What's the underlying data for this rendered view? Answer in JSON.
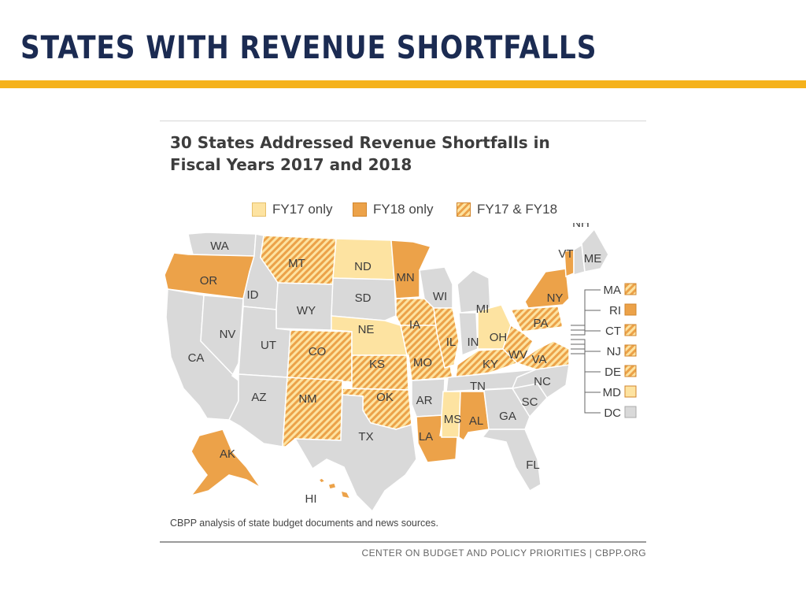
{
  "slide": {
    "title": "STATES WITH REVENUE SHORTFALLS",
    "accent_color": "#f5b21c",
    "title_color": "#1b2b52"
  },
  "figure": {
    "title_line1": "30 States Addressed Revenue Shortfalls in",
    "title_line2": "Fiscal Years 2017 and 2018",
    "legend": [
      {
        "label": "FY17 only",
        "category": "fy17"
      },
      {
        "label": "FY18 only",
        "category": "fy18"
      },
      {
        "label": "FY17 & FY18",
        "category": "both"
      }
    ],
    "source_note": "CBPP analysis of state budget documents and news sources.",
    "credit": "CENTER ON BUDGET AND POLICY PRIORITIES | CBPP.ORG"
  },
  "colors": {
    "fy17": "#fde3a1",
    "fy18": "#eca249",
    "both_light": "#fde3a1",
    "both_dark": "#eca249",
    "none": "#d9d9d9",
    "border": "#ffffff"
  },
  "states": {
    "WA": "none",
    "OR": "fy18",
    "CA": "none",
    "NV": "none",
    "ID": "none",
    "MT": "both",
    "WY": "none",
    "UT": "none",
    "AZ": "none",
    "CO": "both",
    "NM": "both",
    "ND": "fy17",
    "SD": "none",
    "NE": "fy17",
    "KS": "both",
    "OK": "both",
    "TX": "none",
    "MN": "fy18",
    "IA": "both",
    "MO": "both",
    "AR": "none",
    "LA": "fy18",
    "WI": "none",
    "IL": "both",
    "MI": "none",
    "IN": "none",
    "OH": "fy17",
    "KY": "both",
    "TN": "none",
    "MS": "fy17",
    "AL": "fy18",
    "GA": "none",
    "FL": "none",
    "SC": "none",
    "NC": "none",
    "VA": "both",
    "WV": "both",
    "PA": "both",
    "NY": "fy18",
    "VT": "fy18",
    "NH": "none",
    "ME": "none",
    "AK": "fy18",
    "HI": "fy18"
  },
  "map_labels": [
    "WA",
    "OR",
    "CA",
    "NV",
    "ID",
    "MT",
    "WY",
    "UT",
    "AZ",
    "CO",
    "NM",
    "ND",
    "SD",
    "NE",
    "KS",
    "OK",
    "TX",
    "MN",
    "IA",
    "MO",
    "AR",
    "LA",
    "WI",
    "IL",
    "MI",
    "IN",
    "OH",
    "KY",
    "TN",
    "MS",
    "AL",
    "GA",
    "FL",
    "SC",
    "NC",
    "VA",
    "WV",
    "PA",
    "NY",
    "VT",
    "NH",
    "ME",
    "AK",
    "HI"
  ],
  "small_states": [
    {
      "code": "MA",
      "category": "both"
    },
    {
      "code": "RI",
      "category": "fy18"
    },
    {
      "code": "CT",
      "category": "both"
    },
    {
      "code": "NJ",
      "category": "both"
    },
    {
      "code": "DE",
      "category": "both"
    },
    {
      "code": "MD",
      "category": "fy17"
    },
    {
      "code": "DC",
      "category": "none"
    }
  ]
}
